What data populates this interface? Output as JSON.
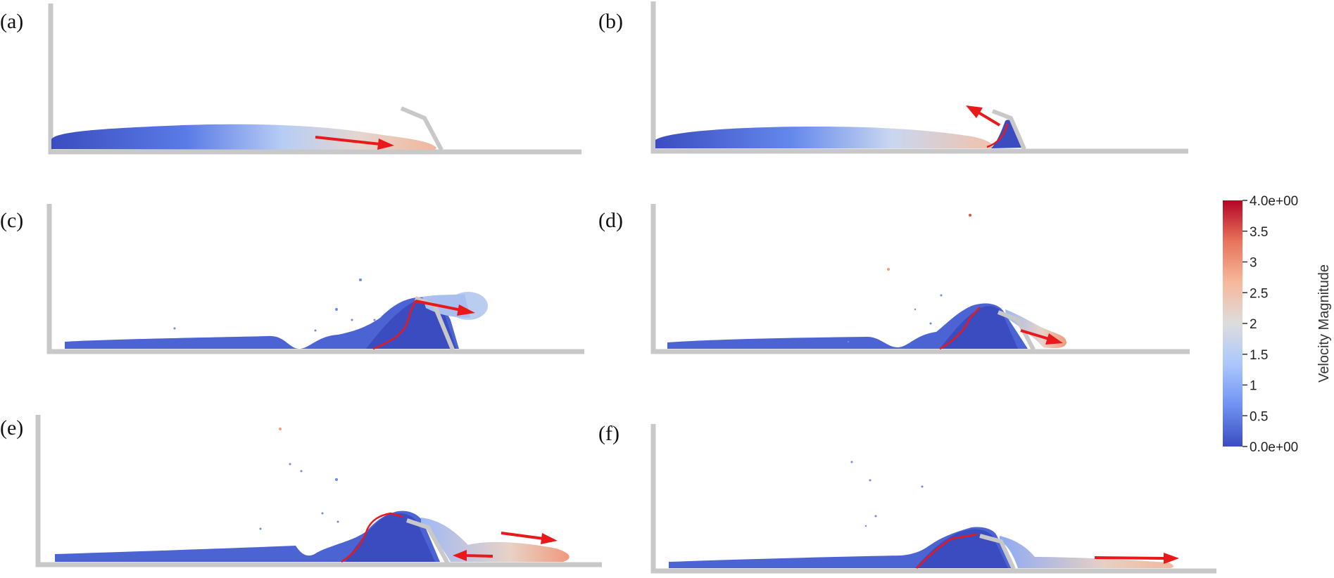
{
  "panels": [
    {
      "label": "(a)"
    },
    {
      "label": "(b)"
    },
    {
      "label": "(c)"
    },
    {
      "label": "(d)"
    },
    {
      "label": "(e)"
    },
    {
      "label": "(f)"
    }
  ],
  "colorbar": {
    "title": "Velocity Magnitude",
    "min": 0,
    "max": 4,
    "ticks": [
      "4.0e+00",
      "3.5",
      "3",
      "2.5",
      "2",
      "1.5",
      "1",
      "0.5",
      "0.0e+00"
    ],
    "colors": [
      "#3b4cc0",
      "#6f92f3",
      "#aac7fd",
      "#dddddd",
      "#f7b89c",
      "#e7745b",
      "#b40426"
    ]
  },
  "colors": {
    "wall": "#c8c8c8",
    "arrow": "#e8181b",
    "deep": "#3b4cc0"
  }
}
